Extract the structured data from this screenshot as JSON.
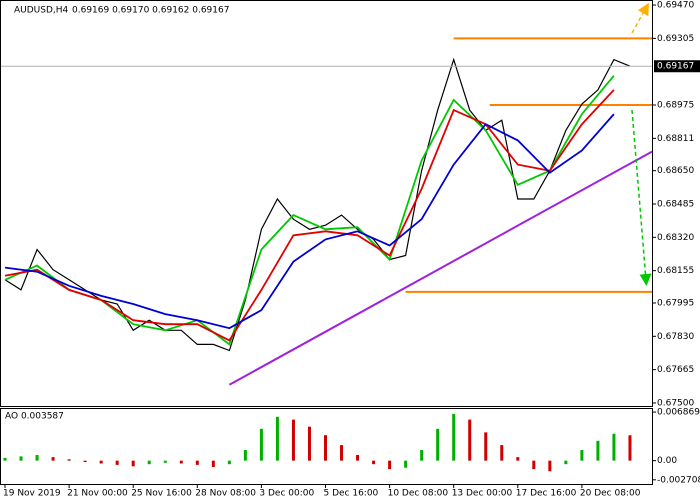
{
  "chart_data": {
    "type": "line",
    "title": "AUDUSD,H4",
    "quote": "0.69169 0.69170 0.69162 0.69167",
    "xlim": [
      -1,
      161.5
    ],
    "xticks": [
      {
        "value": 0,
        "label": "19 Nov 2019"
      },
      {
        "value": 16,
        "label": "21 Nov 00:00"
      },
      {
        "value": 32,
        "label": "25 Nov 16:00"
      },
      {
        "value": 48,
        "label": "28 Nov 08:00"
      },
      {
        "value": 64,
        "label": "3 Dec 00:00"
      },
      {
        "value": 80,
        "label": "5 Dec 16:00"
      },
      {
        "value": 96,
        "label": "10 Dec 08:00"
      },
      {
        "value": 112,
        "label": "13 Dec 00:00"
      },
      {
        "value": 128,
        "label": "17 Dec 16:00"
      },
      {
        "value": 144,
        "label": "20 Dec 08:00"
      }
    ],
    "ylim": [
      0.67485,
      0.6949
    ],
    "yticks": [
      {
        "value": 0.6947,
        "label": "0.69470"
      },
      {
        "value": 0.69305,
        "label": "0.69305"
      },
      {
        "value": 0.68975,
        "label": "0.68975"
      },
      {
        "value": 0.6881,
        "label": "0.68811"
      },
      {
        "value": 0.6865,
        "label": "0.68650"
      },
      {
        "value": 0.68485,
        "label": "0.68485"
      },
      {
        "value": 0.6832,
        "label": "0.68320"
      },
      {
        "value": 0.68155,
        "label": "0.68155"
      },
      {
        "value": 0.67995,
        "label": "0.67995"
      },
      {
        "value": 0.6783,
        "label": "0.67830"
      },
      {
        "value": 0.67665,
        "label": "0.67665"
      },
      {
        "value": 0.675,
        "label": "0.67500"
      }
    ],
    "series": [
      {
        "color": "#000000",
        "x": [
          0,
          4,
          8,
          12,
          16,
          20,
          24,
          28,
          32,
          36,
          40,
          44,
          48,
          52,
          56,
          60,
          64,
          68,
          72,
          76,
          80,
          84,
          88,
          92,
          96,
          100,
          104,
          108,
          112,
          116,
          120,
          124,
          128,
          132,
          136,
          140,
          144,
          148,
          152,
          156
        ],
        "values": [
          0.6811,
          0.6806,
          0.6826,
          0.6816,
          0.6811,
          0.6806,
          0.6801,
          0.6799,
          0.6786,
          0.6791,
          0.6786,
          0.6786,
          0.6779,
          0.6779,
          0.6776,
          0.6801,
          0.6836,
          0.6851,
          0.6841,
          0.6836,
          0.6838,
          0.6843,
          0.6836,
          0.6831,
          0.6821,
          0.6823,
          0.6865,
          0.6895,
          0.692,
          0.6895,
          0.6885,
          0.689,
          0.6851,
          0.6851,
          0.6865,
          0.6885,
          0.6898,
          0.6905,
          0.692,
          0.69167
        ]
      },
      {
        "color": "#00c800",
        "x": [
          0,
          8,
          16,
          24,
          32,
          40,
          48,
          56,
          64,
          72,
          80,
          88,
          96,
          104,
          112,
          120,
          128,
          136,
          144,
          152
        ],
        "values": [
          0.6811,
          0.6818,
          0.6806,
          0.6801,
          0.6789,
          0.6786,
          0.6791,
          0.6779,
          0.6826,
          0.6843,
          0.6836,
          0.6837,
          0.6821,
          0.687,
          0.69,
          0.6885,
          0.6858,
          0.6865,
          0.6893,
          0.6912
        ]
      },
      {
        "color": "#e00000",
        "x": [
          0,
          8,
          16,
          24,
          32,
          40,
          48,
          56,
          64,
          72,
          80,
          88,
          96,
          104,
          112,
          120,
          128,
          136,
          144,
          152
        ],
        "values": [
          0.6813,
          0.6816,
          0.6806,
          0.6801,
          0.6791,
          0.6789,
          0.6789,
          0.6781,
          0.6806,
          0.6833,
          0.6835,
          0.6833,
          0.6823,
          0.6856,
          0.6895,
          0.6888,
          0.6868,
          0.6865,
          0.6888,
          0.6905
        ]
      },
      {
        "color": "#0000d0",
        "x": [
          0,
          8,
          16,
          24,
          32,
          40,
          48,
          56,
          64,
          72,
          80,
          88,
          96,
          104,
          112,
          120,
          128,
          136,
          144,
          152
        ],
        "values": [
          0.6817,
          0.6815,
          0.6808,
          0.6803,
          0.6799,
          0.6794,
          0.6791,
          0.6787,
          0.6796,
          0.682,
          0.6831,
          0.6835,
          0.6828,
          0.6841,
          0.6868,
          0.6888,
          0.688,
          0.6864,
          0.6875,
          0.6893
        ]
      }
    ],
    "levels": [
      {
        "value": 0.69305,
        "x_start": 112,
        "color": "#ff8000"
      },
      {
        "value": 0.68975,
        "x_start": 121,
        "color": "#ff8000"
      },
      {
        "value": 0.6805,
        "x_start": 100,
        "color": "#ff8000"
      }
    ],
    "trendline": {
      "color": "#a020e0",
      "x": [
        56,
        162
      ],
      "values": [
        0.6759,
        0.6875
      ]
    },
    "indicator": {
      "type": "bar",
      "label": "AO 0.003587",
      "up_color": "#00b000",
      "down_color": "#d00000",
      "ylim": [
        -0.0033,
        0.0073
      ],
      "yticks": [
        0.006869,
        {
          "value": 0,
          "label": "0.00"
        },
        -0.002708
      ],
      "x": [
        0,
        4,
        8,
        12,
        16,
        20,
        24,
        28,
        32,
        36,
        40,
        44,
        48,
        52,
        56,
        60,
        64,
        68,
        72,
        76,
        80,
        84,
        88,
        92,
        96,
        100,
        104,
        108,
        112,
        116,
        120,
        124,
        128,
        132,
        136,
        140,
        144,
        148,
        152,
        156
      ],
      "values": [
        0.0004,
        0.0006,
        0.0008,
        0.0005,
        0.0002,
        -0.0002,
        -0.0004,
        -0.0006,
        -0.0008,
        -0.0005,
        -0.0003,
        -0.0004,
        -0.0006,
        -0.0009,
        -0.0005,
        0.0015,
        0.0045,
        0.0062,
        0.0058,
        0.0048,
        0.0036,
        0.0022,
        0.0008,
        -0.0005,
        -0.0012,
        -0.001,
        0.0015,
        0.0045,
        0.0066,
        0.0058,
        0.004,
        0.0022,
        0.0005,
        -0.0012,
        -0.0015,
        -0.0005,
        0.0015,
        0.0028,
        0.0038,
        0.003587
      ]
    }
  }
}
